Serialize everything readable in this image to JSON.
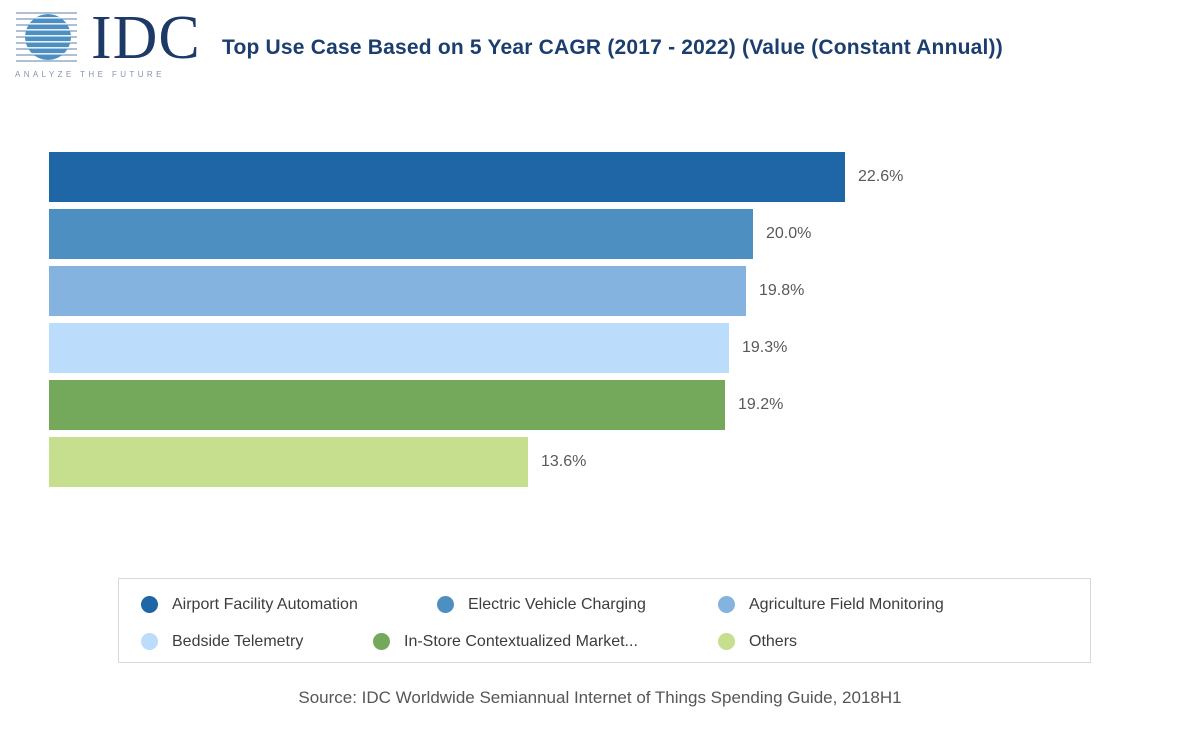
{
  "logo": {
    "wordmark": "IDC",
    "tagline": "ANALYZE THE FUTURE"
  },
  "header": {
    "title": "Top Use Case Based on 5 Year CAGR (2017 - 2022) (Value (Constant Annual))",
    "title_color": "#1c3e6e"
  },
  "chart_data": {
    "type": "bar",
    "orientation": "horizontal",
    "title": "Top Use Case Based on 5 Year CAGR (2017 - 2022) (Value (Constant Annual))",
    "categories": [
      "Airport Facility Automation",
      "Electric Vehicle Charging",
      "Agriculture Field Monitoring",
      "Bedside Telemetry",
      "In-Store Contextualized Market...",
      "Others"
    ],
    "values": [
      22.6,
      20.0,
      19.8,
      19.3,
      19.2,
      13.6
    ],
    "value_labels": [
      "22.6%",
      "20.0%",
      "19.8%",
      "19.3%",
      "19.2%",
      "13.6%"
    ],
    "colors": [
      "#1f66a6",
      "#4e8fc2",
      "#83b3de",
      "#bbdcfa",
      "#74a85b",
      "#c5df8e"
    ],
    "xlim": [
      0,
      22.6
    ],
    "grid": false,
    "legend_position": "bottom",
    "legend_rows": [
      [
        0,
        1,
        2
      ],
      [
        3,
        4,
        5
      ]
    ]
  },
  "footer": {
    "source": "Source: IDC Worldwide Semiannual Internet of Things Spending Guide, 2018H1"
  }
}
